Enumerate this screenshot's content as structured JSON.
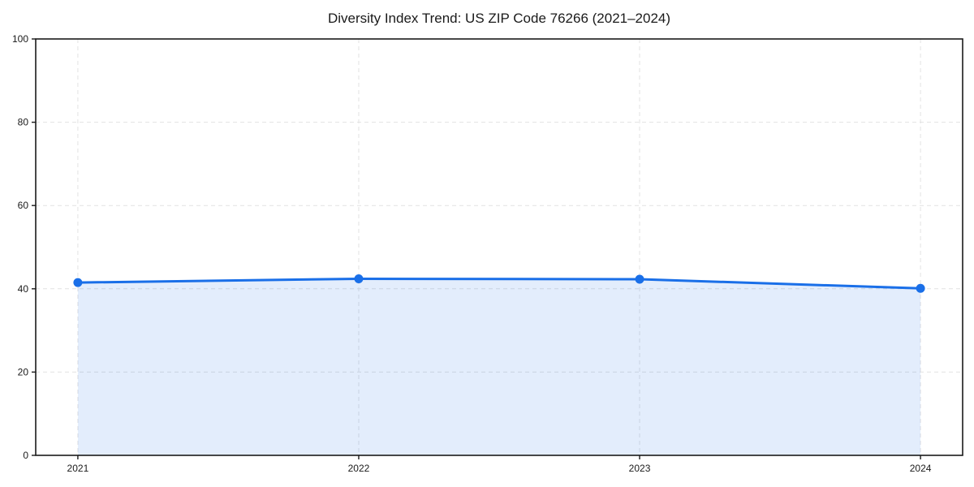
{
  "page": {
    "background": "#ffffff"
  },
  "chart_data": {
    "type": "line",
    "title": "Diversity Index Trend: US ZIP Code 76266 (2021–2024)",
    "categories": [
      "2021",
      "2022",
      "2023",
      "2024"
    ],
    "series": [
      {
        "name": "Diversity Index",
        "values": [
          41.5,
          42.4,
          42.3,
          40.1
        ]
      }
    ],
    "xlabel": "",
    "ylabel": "",
    "ylim": [
      0,
      100
    ],
    "yticks": [
      0,
      20,
      40,
      60,
      80,
      100
    ],
    "grid": true,
    "grid_style": "dashed",
    "legend_position": "none",
    "area_fill": true,
    "colors": {
      "line": "#1a6fe8",
      "marker": "#1a6fe8",
      "fill": "#1a6fe8",
      "fill_opacity": 0.12,
      "grid": "#e2e2e2",
      "spine": "#1a1a1a",
      "text": "#1a1a1a"
    }
  }
}
